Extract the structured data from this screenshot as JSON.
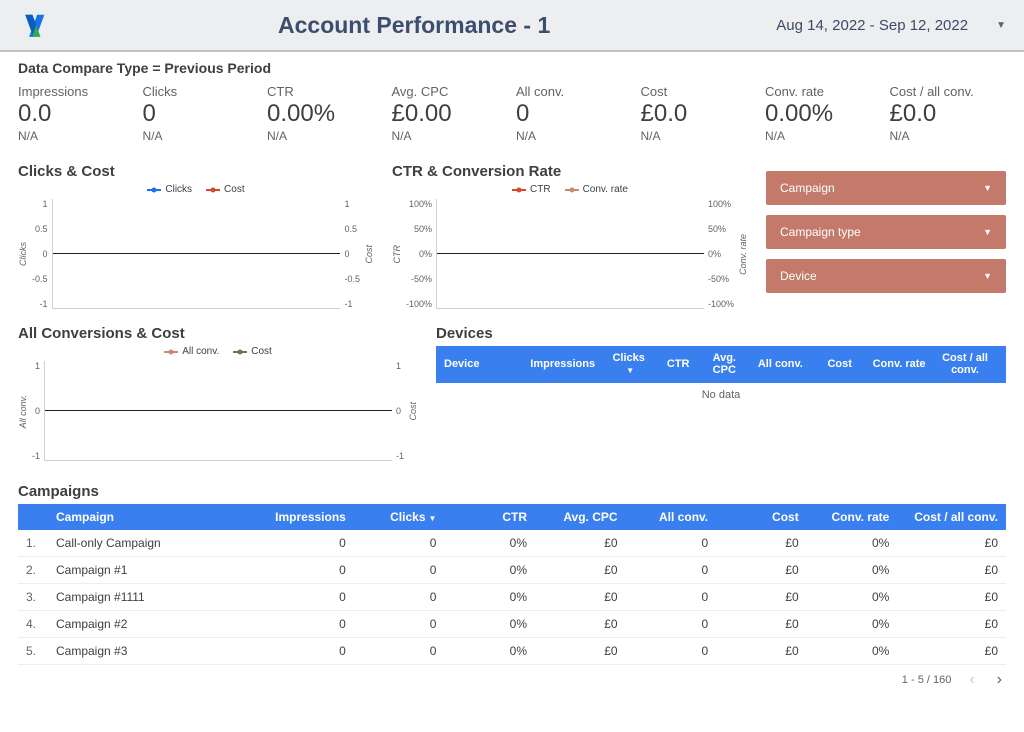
{
  "header": {
    "title": "Account Performance - 1",
    "date_range": "Aug 14, 2022 - Sep 12, 2022"
  },
  "compare_subtitle": "Data Compare Type = Previous Period",
  "kpis": [
    {
      "label": "Impressions",
      "value": "0.0",
      "sub": "N/A"
    },
    {
      "label": "Clicks",
      "value": "0",
      "sub": "N/A"
    },
    {
      "label": "CTR",
      "value": "0.00%",
      "sub": "N/A"
    },
    {
      "label": "Avg. CPC",
      "value": "£0.00",
      "sub": "N/A"
    },
    {
      "label": "All conv.",
      "value": "0",
      "sub": "N/A"
    },
    {
      "label": "Cost",
      "value": "£0.0",
      "sub": "N/A"
    },
    {
      "label": "Conv. rate",
      "value": "0.00%",
      "sub": "N/A"
    },
    {
      "label": "Cost / all conv.",
      "value": "£0.0",
      "sub": "N/A"
    }
  ],
  "chart_clicks_cost": {
    "title": "Clicks & Cost",
    "type": "line",
    "legend": [
      {
        "label": "Clicks",
        "color": "#1a73e8"
      },
      {
        "label": "Cost",
        "color": "#d24a2b"
      }
    ],
    "left_axis": {
      "label": "Clicks",
      "ticks": [
        "1",
        "0.5",
        "0",
        "-0.5",
        "-1"
      ]
    },
    "right_axis": {
      "label": "Cost",
      "ticks": [
        "1",
        "0.5",
        "0",
        "-0.5",
        "-1"
      ]
    },
    "series": {
      "Clicks": [
        0,
        0,
        0,
        0,
        0
      ],
      "Cost": [
        0,
        0,
        0,
        0,
        0
      ]
    },
    "background_color": "#ffffff",
    "axis_color": "#d0d0d0",
    "zero_line_color": "#202124"
  },
  "chart_ctr_conv": {
    "title": "CTR & Conversion Rate",
    "type": "line",
    "legend": [
      {
        "label": "CTR",
        "color": "#d24a2b"
      },
      {
        "label": "Conv. rate",
        "color": "#c58a6f"
      }
    ],
    "left_axis": {
      "label": "CTR",
      "ticks": [
        "100%",
        "50%",
        "0%",
        "-50%",
        "-100%"
      ]
    },
    "right_axis": {
      "label": "Conv. rate",
      "ticks": [
        "100%",
        "50%",
        "0%",
        "-50%",
        "-100%"
      ]
    },
    "series": {
      "CTR": [
        0,
        0,
        0,
        0,
        0
      ],
      "Conv. rate": [
        0,
        0,
        0,
        0,
        0
      ]
    },
    "background_color": "#ffffff",
    "axis_color": "#d0d0d0",
    "zero_line_color": "#202124"
  },
  "filters": [
    {
      "label": "Campaign"
    },
    {
      "label": "Campaign type"
    },
    {
      "label": "Device"
    }
  ],
  "filter_style": {
    "background_color": "#c47a6a",
    "text_color": "#ffffff"
  },
  "chart_allconv_cost": {
    "title": "All Conversions & Cost",
    "type": "line",
    "legend": [
      {
        "label": "All conv.",
        "color": "#c58a6f"
      },
      {
        "label": "Cost",
        "color": "#826a4a"
      }
    ],
    "left_axis": {
      "label": "All conv.",
      "ticks": [
        "1",
        "0",
        "-1"
      ]
    },
    "right_axis": {
      "label": "Cost",
      "ticks": [
        "1",
        "0",
        "-1"
      ]
    },
    "series": {
      "All conv.": [
        0,
        0,
        0,
        0,
        0
      ],
      "Cost": [
        0,
        0,
        0,
        0,
        0
      ]
    },
    "background_color": "#ffffff",
    "axis_color": "#d0d0d0",
    "zero_line_color": "#202124"
  },
  "devices_section": {
    "title": "Devices",
    "columns": [
      "Device",
      "Impressions",
      "Clicks",
      "CTR",
      "Avg. CPC",
      "All conv.",
      "Cost",
      "Conv. rate",
      "Cost / all conv."
    ],
    "sorted_column": "Clicks",
    "no_data_text": "No data",
    "header_bg": "#3a7ff0",
    "header_text_color": "#ffffff"
  },
  "campaigns_section": {
    "title": "Campaigns",
    "columns": [
      "Campaign",
      "Impressions",
      "Clicks",
      "CTR",
      "Avg. CPC",
      "All conv.",
      "Cost",
      "Conv. rate",
      "Cost / all conv."
    ],
    "sorted_column": "Clicks",
    "header_bg": "#3a7ff0",
    "header_text_color": "#ffffff",
    "rows": [
      {
        "idx": "1.",
        "name": "Call-only Campaign",
        "impressions": "0",
        "clicks": "0",
        "ctr": "0%",
        "avg_cpc": "£0",
        "all_conv": "0",
        "cost": "£0",
        "conv_rate": "0%",
        "cost_all_conv": "£0"
      },
      {
        "idx": "2.",
        "name": "Campaign #1",
        "impressions": "0",
        "clicks": "0",
        "ctr": "0%",
        "avg_cpc": "£0",
        "all_conv": "0",
        "cost": "£0",
        "conv_rate": "0%",
        "cost_all_conv": "£0"
      },
      {
        "idx": "3.",
        "name": "Campaign #1111",
        "impressions": "0",
        "clicks": "0",
        "ctr": "0%",
        "avg_cpc": "£0",
        "all_conv": "0",
        "cost": "£0",
        "conv_rate": "0%",
        "cost_all_conv": "£0"
      },
      {
        "idx": "4.",
        "name": "Campaign #2",
        "impressions": "0",
        "clicks": "0",
        "ctr": "0%",
        "avg_cpc": "£0",
        "all_conv": "0",
        "cost": "£0",
        "conv_rate": "0%",
        "cost_all_conv": "£0"
      },
      {
        "idx": "5.",
        "name": "Campaign #3",
        "impressions": "0",
        "clicks": "0",
        "ctr": "0%",
        "avg_cpc": "£0",
        "all_conv": "0",
        "cost": "£0",
        "conv_rate": "0%",
        "cost_all_conv": "£0"
      }
    ]
  },
  "pager": {
    "text": "1 - 5 / 160"
  }
}
